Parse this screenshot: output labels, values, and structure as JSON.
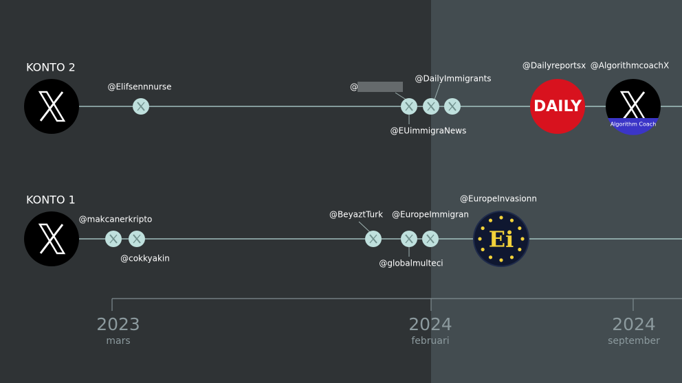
{
  "accounts": [
    {
      "label": "KONTO 2",
      "handles": [
        "@Elifsennnurse",
        "@",
        "@DailyImmigrants",
        "@EUimmigraNews",
        "@Dailyreportsx",
        "@AlgorithmcoachX"
      ]
    },
    {
      "label": "KONTO 1",
      "handles": [
        "@makcanerkripto",
        "@cokkyakin",
        "@BeyaztTurk",
        "@EuropeImmigran",
        "@globalmulteci",
        "@EuropeInvasionn"
      ]
    }
  ],
  "logos": {
    "daily": "DAILY",
    "ei": "Ei",
    "algorithm_coach": "Algorithm Coach"
  },
  "timeline": [
    {
      "year": "2023",
      "month": "mars"
    },
    {
      "year": "2024",
      "month": "februari"
    },
    {
      "year": "2024",
      "month": "september"
    }
  ]
}
